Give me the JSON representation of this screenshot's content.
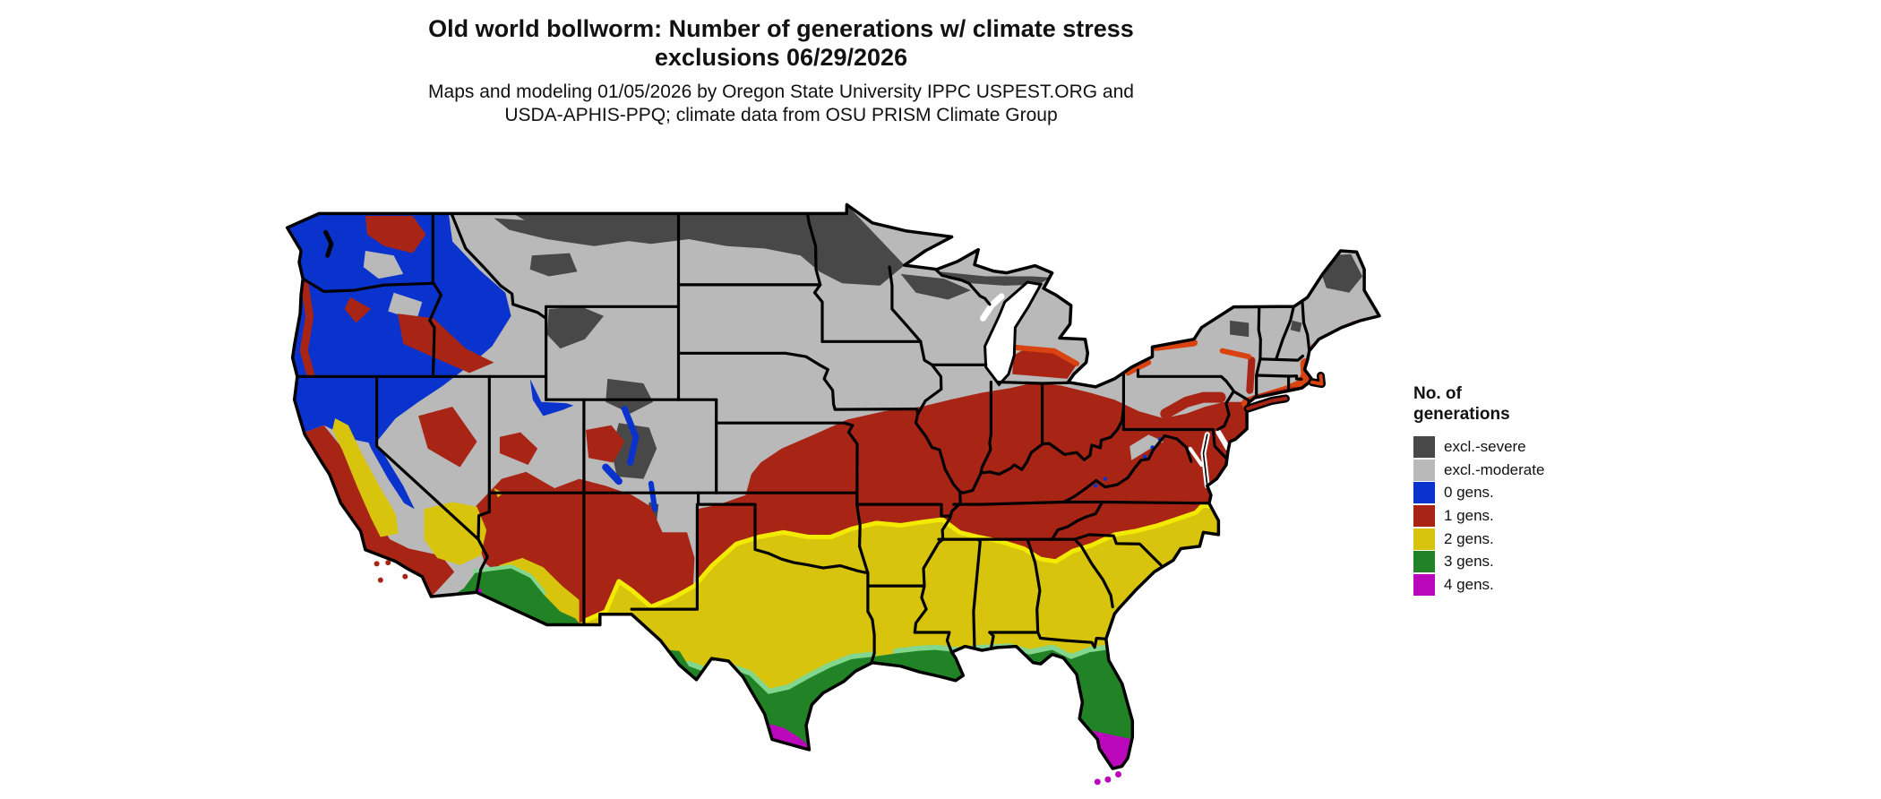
{
  "title": {
    "line1": "Old world bollworm: Number of generations w/ climate stress",
    "line2": "exclusions 06/29/2026"
  },
  "subtitle": {
    "line1": "Maps and modeling 01/05/2026 by Oregon State University IPPC USPEST.ORG and",
    "line2": "USDA-APHIS-PPQ; climate data from OSU PRISM Climate Group"
  },
  "legend": {
    "title_line1": "No. of",
    "title_line2": "generations",
    "items": [
      {
        "label": "excl.-severe",
        "color": "#484848"
      },
      {
        "label": "excl.-moderate",
        "color": "#b9b9b9"
      },
      {
        "label": "0 gens.",
        "color": "#0a32cd"
      },
      {
        "label": "1 gens.",
        "color": "#a82515"
      },
      {
        "label": "2 gens.",
        "color": "#d8c40c"
      },
      {
        "label": "3 gens.",
        "color": "#218226"
      },
      {
        "label": "4 gens.",
        "color": "#bb07bb"
      }
    ]
  },
  "map": {
    "region": "Continental United States",
    "kind": "raster choropleth of insect generations with climate-stress exclusions"
  },
  "colors": {
    "excl_severe": "#484848",
    "excl_moderate": "#b9b9b9",
    "gens0_blue": "#0a32cd",
    "gens1_red": "#a82515",
    "gens2_yellow": "#d8c40c",
    "gens2_yellow_bright": "#f2ea00",
    "gens3_green": "#218226",
    "gens4_magenta": "#bb07bb",
    "transition_orange": "#d8430f",
    "transition_light_green": "#82d68e",
    "water": "#ffffff",
    "border": "#000000"
  }
}
